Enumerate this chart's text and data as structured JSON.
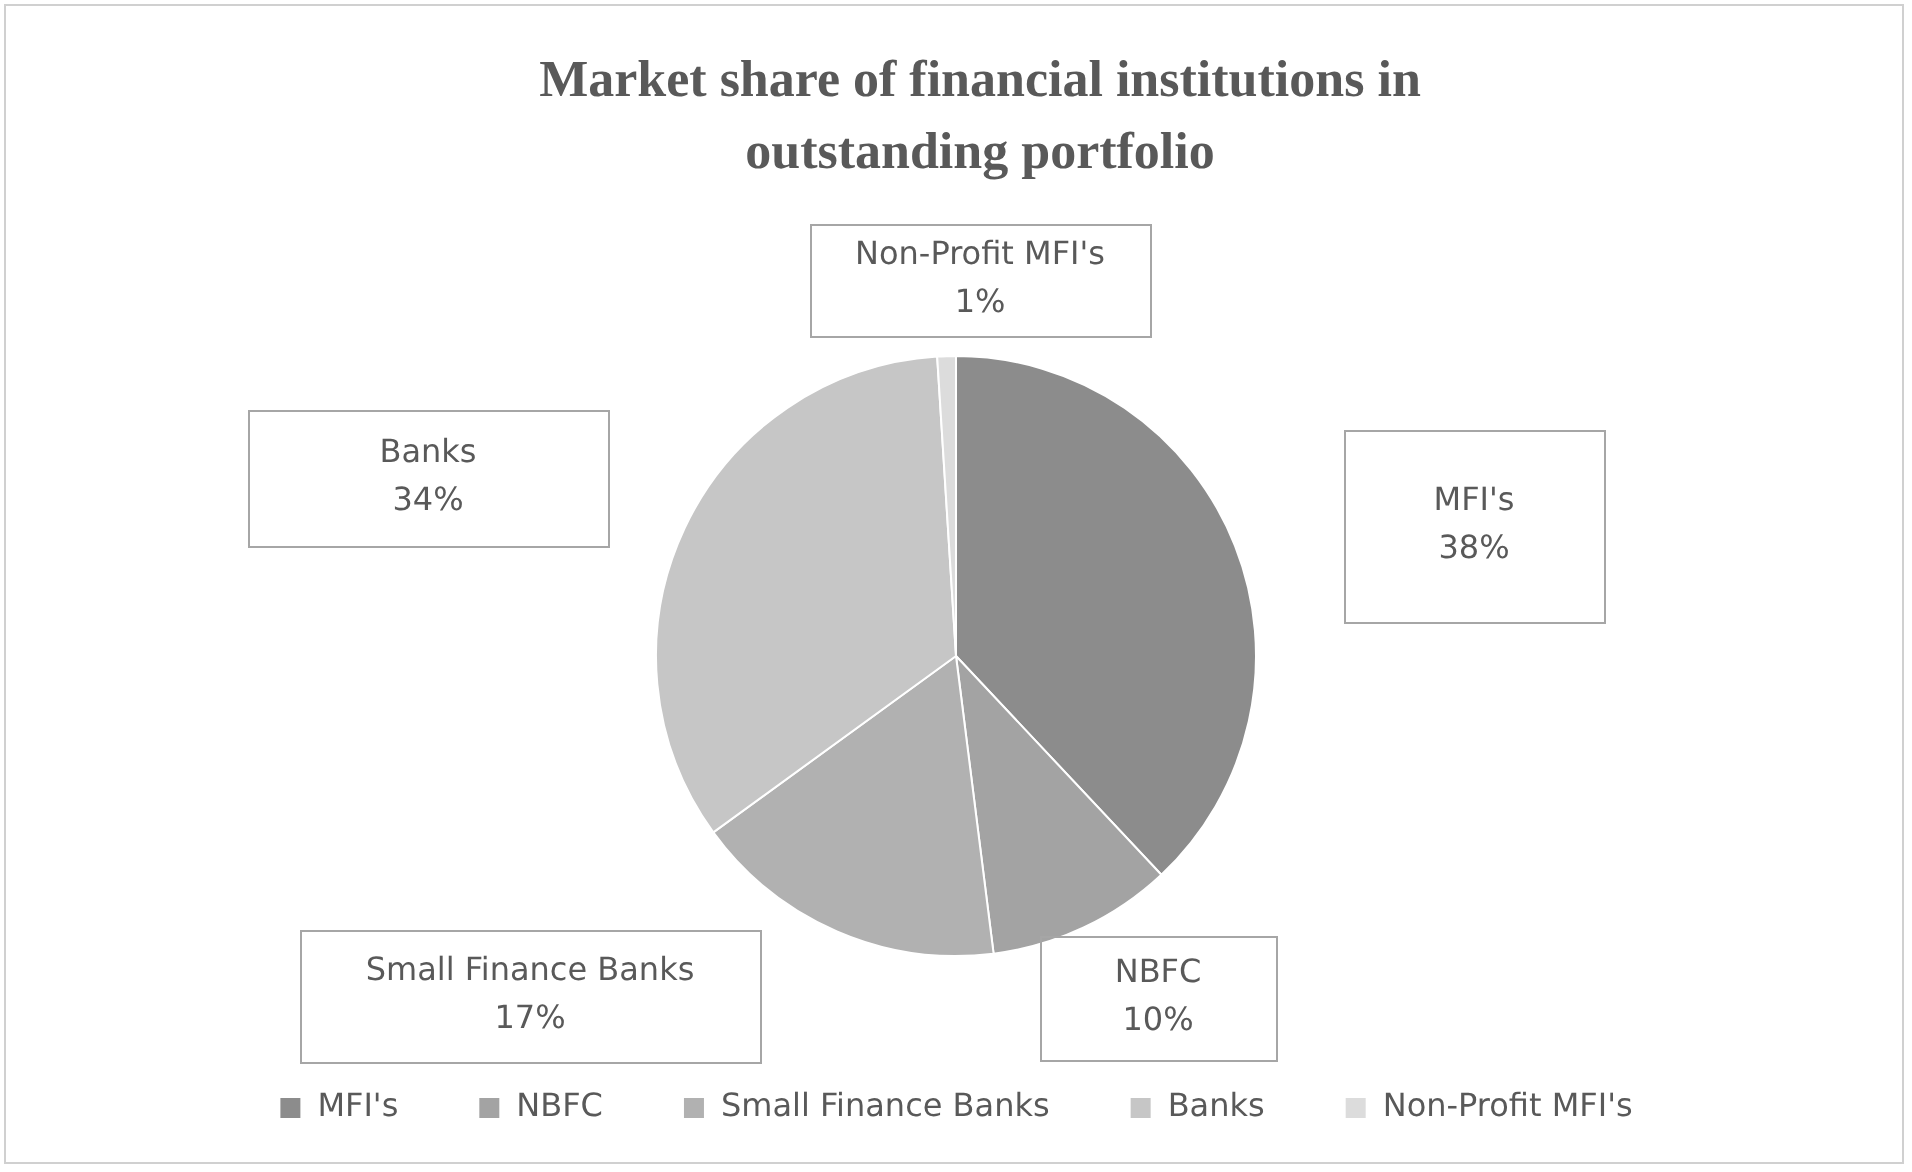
{
  "chart_data": {
    "type": "pie",
    "title": "Market share of financial institutions in outstanding portfolio",
    "categories": [
      "MFI's",
      "NBFC",
      "Small Finance Banks",
      "Banks",
      "Non-Profit MFI's"
    ],
    "values": [
      38,
      10,
      17,
      34,
      1
    ],
    "value_labels": [
      "38%",
      "10%",
      "17%",
      "34%",
      "1%"
    ],
    "colors": [
      "#8c8c8c",
      "#a3a3a3",
      "#b1b1b1",
      "#c6c6c6",
      "#dcdcdc"
    ],
    "legend": "bottom"
  }
}
